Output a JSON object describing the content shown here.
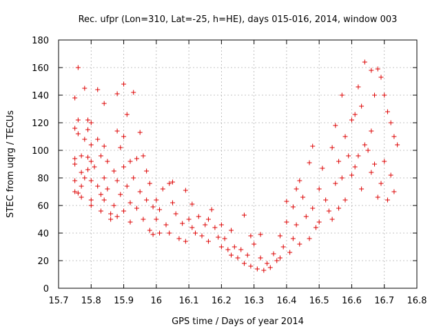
{
  "chart_data": {
    "type": "scatter",
    "title": "Rec. ufpr (Lon=310, Lat=-25, h=HE), days 015-016, 2014, window 003",
    "xlabel": "GPS time / Days of year 2014",
    "ylabel": "STEC from uqrg / TECUs",
    "xlim": [
      15.7,
      16.8
    ],
    "ylim": [
      0,
      180
    ],
    "xticks": [
      15.7,
      15.8,
      15.9,
      16,
      16.1,
      16.2,
      16.3,
      16.4,
      16.5,
      16.6,
      16.7,
      16.8
    ],
    "xtick_labels": [
      "15.7",
      "15.8",
      "15.9",
      "16",
      "16.1",
      "16.2",
      "16.3",
      "16.4",
      "16.5",
      "16.6",
      "16.7",
      "16.8"
    ],
    "yticks": [
      0,
      20,
      40,
      60,
      80,
      100,
      120,
      140,
      160,
      180
    ],
    "ytick_labels": [
      "0",
      "20",
      "40",
      "60",
      "80",
      "100",
      "120",
      "140",
      "160",
      "180"
    ],
    "grid": true,
    "marker": "+",
    "marker_color": "#dd0000",
    "series": [
      {
        "points": [
          [
            15.75,
            138
          ],
          [
            15.75,
            116
          ],
          [
            15.75,
            94
          ],
          [
            15.75,
            90
          ],
          [
            15.75,
            78
          ],
          [
            15.75,
            70
          ],
          [
            15.76,
            69
          ],
          [
            15.76,
            160
          ],
          [
            15.76,
            122
          ],
          [
            15.76,
            112
          ],
          [
            15.77,
            96
          ],
          [
            15.77,
            84
          ],
          [
            15.77,
            74
          ],
          [
            15.77,
            66
          ],
          [
            15.78,
            145
          ],
          [
            15.78,
            108
          ],
          [
            15.78,
            80
          ],
          [
            15.79,
            122
          ],
          [
            15.79,
            115
          ],
          [
            15.79,
            95
          ],
          [
            15.79,
            86
          ],
          [
            15.8,
            120
          ],
          [
            15.8,
            104
          ],
          [
            15.8,
            92
          ],
          [
            15.8,
            78
          ],
          [
            15.8,
            64
          ],
          [
            15.8,
            60
          ],
          [
            15.81,
            88
          ],
          [
            15.82,
            144
          ],
          [
            15.82,
            108
          ],
          [
            15.82,
            74
          ],
          [
            15.83,
            96
          ],
          [
            15.83,
            68
          ],
          [
            15.83,
            56
          ],
          [
            15.84,
            134
          ],
          [
            15.84,
            103
          ],
          [
            15.84,
            80
          ],
          [
            15.84,
            64
          ],
          [
            15.85,
            92
          ],
          [
            15.85,
            72
          ],
          [
            15.86,
            54
          ],
          [
            15.86,
            50
          ],
          [
            15.87,
            85
          ],
          [
            15.87,
            60
          ],
          [
            15.88,
            141
          ],
          [
            15.88,
            114
          ],
          [
            15.88,
            78
          ],
          [
            15.88,
            52
          ],
          [
            15.89,
            102
          ],
          [
            15.89,
            68
          ],
          [
            15.9,
            148
          ],
          [
            15.9,
            110
          ],
          [
            15.9,
            88
          ],
          [
            15.9,
            56
          ],
          [
            15.91,
            126
          ],
          [
            15.91,
            74
          ],
          [
            15.92,
            92
          ],
          [
            15.92,
            62
          ],
          [
            15.92,
            48
          ],
          [
            15.93,
            142
          ],
          [
            15.93,
            80
          ],
          [
            15.94,
            94
          ],
          [
            15.94,
            58
          ],
          [
            15.95,
            113
          ],
          [
            15.95,
            70
          ],
          [
            15.96,
            96
          ],
          [
            15.96,
            50
          ],
          [
            15.97,
            85
          ],
          [
            15.97,
            64
          ],
          [
            15.98,
            76
          ],
          [
            15.98,
            42
          ],
          [
            15.99,
            59
          ],
          [
            15.99,
            39
          ],
          [
            16.0,
            64
          ],
          [
            16.0,
            50
          ],
          [
            16.01,
            57
          ],
          [
            16.01,
            40
          ],
          [
            16.02,
            72
          ],
          [
            16.03,
            46
          ],
          [
            16.04,
            76
          ],
          [
            16.04,
            40
          ],
          [
            16.05,
            77
          ],
          [
            16.05,
            62
          ],
          [
            16.06,
            54
          ],
          [
            16.07,
            36
          ],
          [
            16.08,
            47
          ],
          [
            16.09,
            71
          ],
          [
            16.09,
            34
          ],
          [
            16.1,
            50
          ],
          [
            16.11,
            61
          ],
          [
            16.11,
            44
          ],
          [
            16.12,
            40
          ],
          [
            16.13,
            52
          ],
          [
            16.14,
            38
          ],
          [
            16.15,
            46
          ],
          [
            16.16,
            50
          ],
          [
            16.16,
            34
          ],
          [
            16.17,
            57
          ],
          [
            16.18,
            44
          ],
          [
            16.19,
            37
          ],
          [
            16.2,
            46
          ],
          [
            16.2,
            30
          ],
          [
            16.21,
            36
          ],
          [
            16.22,
            28
          ],
          [
            16.23,
            42
          ],
          [
            16.23,
            24
          ],
          [
            16.24,
            30
          ],
          [
            16.25,
            22
          ],
          [
            16.26,
            28
          ],
          [
            16.27,
            53
          ],
          [
            16.27,
            18
          ],
          [
            16.28,
            24
          ],
          [
            16.29,
            38
          ],
          [
            16.29,
            16
          ],
          [
            16.3,
            32
          ],
          [
            16.31,
            14
          ],
          [
            16.32,
            39
          ],
          [
            16.32,
            22
          ],
          [
            16.33,
            13
          ],
          [
            16.34,
            18
          ],
          [
            16.35,
            15
          ],
          [
            16.36,
            25
          ],
          [
            16.37,
            20
          ],
          [
            16.38,
            38
          ],
          [
            16.38,
            22
          ],
          [
            16.39,
            30
          ],
          [
            16.4,
            63
          ],
          [
            16.4,
            48
          ],
          [
            16.41,
            26
          ],
          [
            16.42,
            59
          ],
          [
            16.42,
            36
          ],
          [
            16.43,
            72
          ],
          [
            16.43,
            46
          ],
          [
            16.44,
            78
          ],
          [
            16.44,
            32
          ],
          [
            16.45,
            66
          ],
          [
            16.46,
            52
          ],
          [
            16.47,
            91
          ],
          [
            16.47,
            36
          ],
          [
            16.48,
            103
          ],
          [
            16.48,
            58
          ],
          [
            16.49,
            44
          ],
          [
            16.5,
            72
          ],
          [
            16.5,
            48
          ],
          [
            16.51,
            87
          ],
          [
            16.52,
            64
          ],
          [
            16.53,
            56
          ],
          [
            16.54,
            102
          ],
          [
            16.54,
            50
          ],
          [
            16.55,
            118
          ],
          [
            16.55,
            76
          ],
          [
            16.56,
            92
          ],
          [
            16.56,
            58
          ],
          [
            16.57,
            140
          ],
          [
            16.57,
            80
          ],
          [
            16.58,
            110
          ],
          [
            16.58,
            64
          ],
          [
            16.59,
            96
          ],
          [
            16.6,
            122
          ],
          [
            16.6,
            82
          ],
          [
            16.61,
            126
          ],
          [
            16.61,
            88
          ],
          [
            16.62,
            146
          ],
          [
            16.62,
            96
          ],
          [
            16.63,
            132
          ],
          [
            16.63,
            72
          ],
          [
            16.64,
            164
          ],
          [
            16.64,
            104
          ],
          [
            16.65,
            100
          ],
          [
            16.66,
            158
          ],
          [
            16.66,
            114
          ],
          [
            16.66,
            84
          ],
          [
            16.67,
            140
          ],
          [
            16.67,
            90
          ],
          [
            16.68,
            159
          ],
          [
            16.68,
            66
          ],
          [
            16.69,
            153
          ],
          [
            16.69,
            76
          ],
          [
            16.7,
            140
          ],
          [
            16.7,
            92
          ],
          [
            16.71,
            128
          ],
          [
            16.71,
            64
          ],
          [
            16.72,
            120
          ],
          [
            16.72,
            82
          ],
          [
            16.73,
            110
          ],
          [
            16.73,
            70
          ],
          [
            16.74,
            104
          ]
        ]
      }
    ]
  }
}
